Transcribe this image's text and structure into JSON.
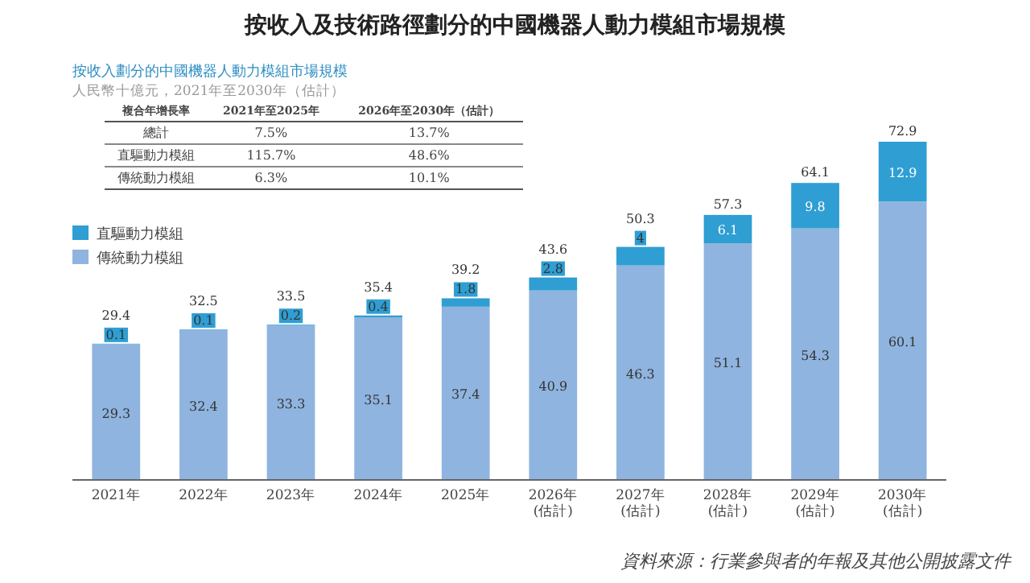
{
  "chart_data": {
    "type": "bar",
    "stacked": true,
    "data_labels": true,
    "legend": "left",
    "title": "按收入及技術路徑劃分的中國機器人動力模組市場規模",
    "subtitle": "按收入劃分的中國機器人動力模組市場規模",
    "categories": [
      "2021年",
      "2022年",
      "2023年",
      "2024年",
      "2025年",
      "2026年\n(估計)",
      "2027年\n(估計)",
      "2028年\n(估計)",
      "2029年\n(估計)",
      "2030年\n(估計)"
    ],
    "series": [
      {
        "name": "傳統動力模組",
        "color": "#8fb4df",
        "values": [
          29.3,
          32.4,
          33.3,
          35.1,
          37.4,
          40.9,
          46.3,
          51.1,
          54.3,
          60.1
        ]
      },
      {
        "name": "直驅動力模組",
        "color": "#2f9ed3",
        "values": [
          0.1,
          0.1,
          0.2,
          0.4,
          1.8,
          2.8,
          4.0,
          6.1,
          9.8,
          12.9
        ]
      }
    ],
    "totals": [
      "29.4",
      "32.5",
      "33.5",
      "35.4",
      "39.2",
      "43.6",
      "50.3",
      "57.3",
      "64.1",
      "72.9"
    ],
    "annotations": [
      "人民幣十億元，2021年至2030年（估計）",
      "複合年增長率",
      "2021年至2025年",
      "2026年至2030年（估計）",
      "總計",
      "7.5%",
      "13.7%",
      "直驅動力模組",
      "115.7%",
      "48.6%",
      "傳統動力模組",
      "6.3%",
      "10.1%",
      "資料來源：行業參與者的年報及其他公開披露文件"
    ]
  }
}
